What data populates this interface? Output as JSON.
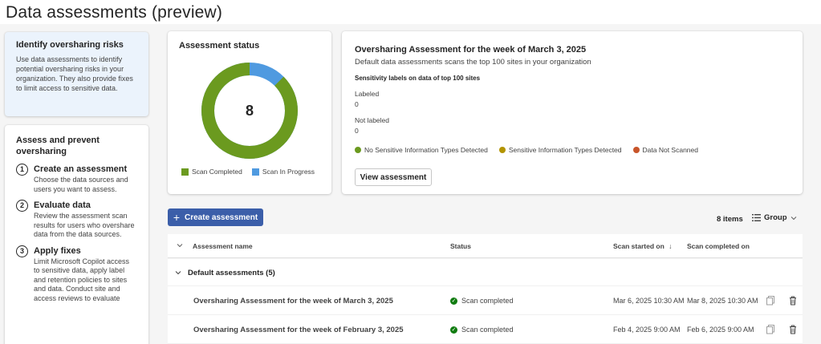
{
  "page": {
    "title": "Data assessments (preview)"
  },
  "risk_card": {
    "title": "Identify oversharing risks",
    "text": "Use data assessments to identify potential oversharing risks in your organization. They also provide fixes to limit access to sensitive data."
  },
  "steps_card": {
    "title": "Assess and prevent oversharing",
    "steps": [
      {
        "num": "1",
        "title": "Create an assessment",
        "desc": "Choose the data sources and users you want to assess."
      },
      {
        "num": "2",
        "title": "Evaluate data",
        "desc": "Review the assessment scan results for users who overshare data from the data sources."
      },
      {
        "num": "3",
        "title": "Apply fixes",
        "desc": "Limit Microsoft Copilot access to sensitive data, apply label and retention policies to sites and data. Conduct site and access reviews to evaluate"
      }
    ]
  },
  "status_card": {
    "title": "Assessment status",
    "total": "8",
    "completed_fraction": 0.875,
    "legend": [
      {
        "label": "Scan Completed",
        "color": "#6b9a1f"
      },
      {
        "label": "Scan In Progress",
        "color": "#4f9ae0"
      }
    ]
  },
  "oversharing_card": {
    "title": "Oversharing Assessment for the week of March 3, 2025",
    "subtitle": "Default data assessments scans the top 100 sites in your organization",
    "section_title": "Sensitivity labels on data of top 100 sites",
    "labeled_label": "Labeled",
    "labeled_value": "0",
    "not_labeled_label": "Not labeled",
    "not_labeled_value": "0",
    "legend": [
      {
        "label": "No Sensitive Information Types Detected",
        "color": "#6b9a1f"
      },
      {
        "label": "Sensitive Information Types Detected",
        "color": "#b39400"
      },
      {
        "label": "Data Not Scanned",
        "color": "#c8552a"
      }
    ],
    "button": "View assessment"
  },
  "list": {
    "create_button": "Create assessment",
    "items_count": "8 items",
    "group_label": "Group",
    "columns": {
      "name": "Assessment name",
      "status": "Status",
      "started": "Scan started on",
      "completed": "Scan completed on"
    },
    "group": "Default assessments (5)",
    "rows": [
      {
        "name": "Oversharing Assessment for the week of March 3, 2025",
        "status": "Scan completed",
        "started": "Mar 6, 2025 10:30 AM",
        "completed": "Mar 8, 2025 10:30 AM"
      },
      {
        "name": "Oversharing Assessment for the week of February 3, 2025",
        "status": "Scan completed",
        "started": "Feb 4, 2025 9:00 AM",
        "completed": "Feb 6, 2025 9:00 AM"
      }
    ]
  }
}
